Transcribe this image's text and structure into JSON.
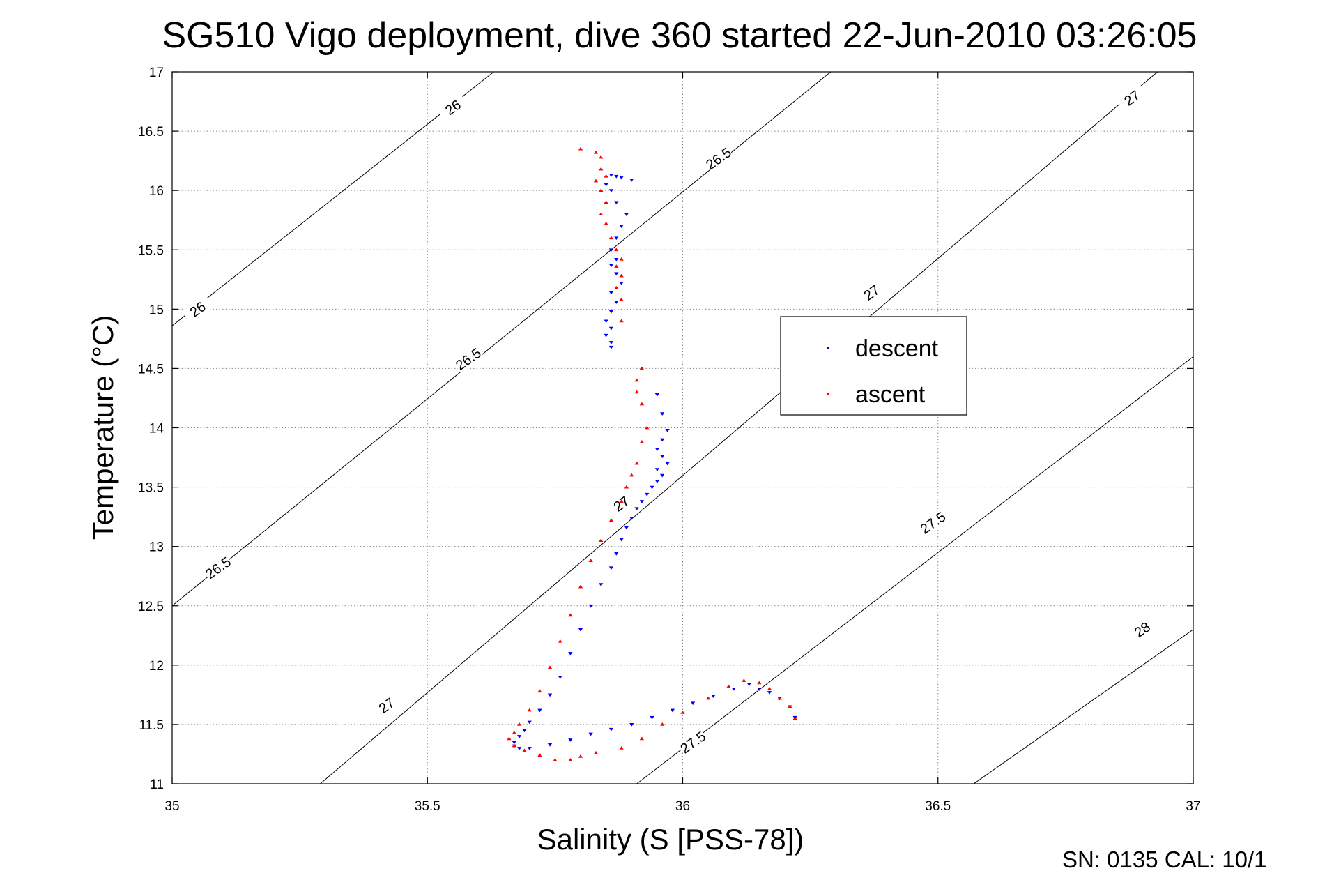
{
  "chart_data": {
    "type": "scatter",
    "title": "SG510 Vigo deployment, dive 360 started 22-Jun-2010 03:26:05",
    "xlabel": "Salinity (S [PSS-78])",
    "ylabel": "Temperature (°C)",
    "xlim": [
      35,
      37
    ],
    "ylim": [
      11,
      17
    ],
    "x_ticks": [
      "35",
      "35.5",
      "36",
      "36.5",
      "37"
    ],
    "y_ticks": [
      "11",
      "11.5",
      "12",
      "12.5",
      "13",
      "13.5",
      "14",
      "14.5",
      "15",
      "15.5",
      "16",
      "16.5",
      "17"
    ],
    "grid": true,
    "legend_placement": "right",
    "footer": "SN: 0135  CAL: 10/1",
    "density_contours": [
      {
        "label": "26",
        "from": [
          35,
          14.86
        ],
        "to": [
          35.63,
          17
        ]
      },
      {
        "label": "26.5",
        "from": [
          35,
          12.5
        ],
        "to": [
          36.29,
          17
        ]
      },
      {
        "label": "27",
        "from": [
          35.29,
          11
        ],
        "to": [
          36.93,
          17
        ]
      },
      {
        "label": "27.5",
        "from": [
          35.91,
          11
        ],
        "to": [
          37,
          14.6
        ]
      },
      {
        "label": "28",
        "from": [
          36.57,
          11
        ],
        "to": [
          37,
          12.3
        ]
      }
    ],
    "contour_labels": [
      {
        "text": "26",
        "x": 35.55,
        "y": 16.7,
        "angle": -35
      },
      {
        "text": "26",
        "x": 35.05,
        "y": 15.0,
        "angle": -35
      },
      {
        "text": "26.5",
        "x": 36.07,
        "y": 16.27,
        "angle": -35
      },
      {
        "text": "26.5",
        "x": 35.58,
        "y": 14.58,
        "angle": -35
      },
      {
        "text": "26.5",
        "x": 35.09,
        "y": 12.82,
        "angle": -35
      },
      {
        "text": "27",
        "x": 36.88,
        "y": 16.78,
        "angle": -35
      },
      {
        "text": "27",
        "x": 36.37,
        "y": 15.14,
        "angle": -35
      },
      {
        "text": "27",
        "x": 35.88,
        "y": 13.36,
        "angle": -35
      },
      {
        "text": "27",
        "x": 35.42,
        "y": 11.66,
        "angle": -35
      },
      {
        "text": "27.5",
        "x": 36.49,
        "y": 13.2,
        "angle": -35
      },
      {
        "text": "27.5",
        "x": 36.02,
        "y": 11.35,
        "angle": -35
      },
      {
        "text": "28",
        "x": 36.9,
        "y": 12.3,
        "angle": -35
      }
    ],
    "series": [
      {
        "name": "descent",
        "color": "#0000ff",
        "marker": "triangle-down",
        "x": [
          35.86,
          35.87,
          35.88,
          35.9,
          35.85,
          35.86,
          35.87,
          35.89,
          35.88,
          35.87,
          35.86,
          35.87,
          35.86,
          35.87,
          35.88,
          35.86,
          35.87,
          35.86,
          35.85,
          35.86,
          35.85,
          35.86,
          35.86,
          35.95,
          35.96,
          35.97,
          35.96,
          35.95,
          35.96,
          35.97,
          35.95,
          35.96,
          35.95,
          35.94,
          35.93,
          35.92,
          35.91,
          35.9,
          35.89,
          35.88,
          35.87,
          35.86,
          35.84,
          35.82,
          35.8,
          35.78,
          35.76,
          35.74,
          35.72,
          35.7,
          35.69,
          35.68,
          35.67,
          35.67,
          35.68,
          35.7,
          35.74,
          35.78,
          35.82,
          35.86,
          35.9,
          35.94,
          35.98,
          36.02,
          36.06,
          36.1,
          36.13,
          36.15,
          36.17,
          36.19,
          36.21,
          36.22
        ],
        "y": [
          16.13,
          16.12,
          16.11,
          16.09,
          16.05,
          16.0,
          15.9,
          15.8,
          15.7,
          15.6,
          15.5,
          15.42,
          15.37,
          15.3,
          15.22,
          15.14,
          15.06,
          14.98,
          14.9,
          14.84,
          14.78,
          14.72,
          14.68,
          14.28,
          14.12,
          13.98,
          13.9,
          13.82,
          13.76,
          13.7,
          13.65,
          13.6,
          13.55,
          13.5,
          13.44,
          13.38,
          13.32,
          13.24,
          13.16,
          13.06,
          12.94,
          12.82,
          12.68,
          12.5,
          12.3,
          12.1,
          11.9,
          11.75,
          11.62,
          11.52,
          11.45,
          11.4,
          11.35,
          11.32,
          11.3,
          11.3,
          11.33,
          11.37,
          11.42,
          11.46,
          11.5,
          11.56,
          11.62,
          11.68,
          11.74,
          11.8,
          11.84,
          11.8,
          11.77,
          11.72,
          11.65,
          11.56
        ]
      },
      {
        "name": "ascent",
        "color": "#ff0000",
        "marker": "triangle-up",
        "x": [
          35.8,
          35.83,
          35.84,
          35.84,
          35.85,
          35.83,
          35.84,
          35.85,
          35.84,
          35.85,
          35.86,
          35.87,
          35.88,
          35.87,
          35.88,
          35.87,
          35.88,
          35.88,
          35.92,
          35.91,
          35.91,
          35.92,
          35.93,
          35.92,
          35.91,
          35.9,
          35.89,
          35.88,
          35.86,
          35.84,
          35.82,
          35.8,
          35.78,
          35.76,
          35.74,
          35.72,
          35.7,
          35.68,
          35.67,
          35.66,
          35.67,
          35.69,
          35.72,
          35.75,
          35.78,
          35.8,
          35.83,
          35.88,
          35.92,
          35.96,
          36.0,
          36.05,
          36.09,
          36.12,
          36.15,
          36.17,
          36.19,
          36.21,
          36.22
        ],
        "y": [
          16.35,
          16.32,
          16.28,
          16.18,
          16.12,
          16.08,
          16.0,
          15.9,
          15.8,
          15.72,
          15.6,
          15.5,
          15.42,
          15.36,
          15.28,
          15.18,
          15.08,
          14.9,
          14.5,
          14.4,
          14.3,
          14.2,
          14.0,
          13.88,
          13.7,
          13.6,
          13.5,
          13.38,
          13.22,
          13.05,
          12.88,
          12.66,
          12.42,
          12.2,
          11.98,
          11.78,
          11.62,
          11.5,
          11.43,
          11.38,
          11.32,
          11.28,
          11.24,
          11.2,
          11.2,
          11.23,
          11.26,
          11.3,
          11.38,
          11.5,
          11.6,
          11.72,
          11.82,
          11.87,
          11.85,
          11.8,
          11.72,
          11.65,
          11.55
        ]
      }
    ]
  }
}
